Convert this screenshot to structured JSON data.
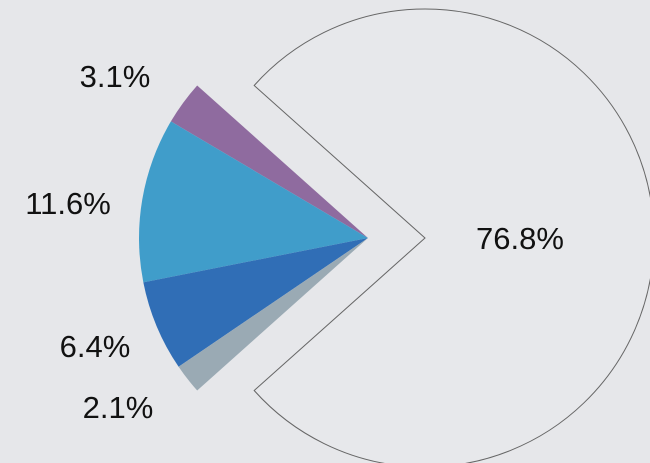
{
  "chart_data": {
    "type": "pie",
    "values": [
      76.8,
      3.1,
      11.6,
      6.4,
      2.1
    ],
    "value_labels": [
      "76.8%",
      "3.1%",
      "11.6%",
      "6.4%",
      "2.1%"
    ],
    "colors": [
      "#e7e8eb",
      "#8f6b9f",
      "#409dca",
      "#306eb6",
      "#9aaab4"
    ]
  }
}
